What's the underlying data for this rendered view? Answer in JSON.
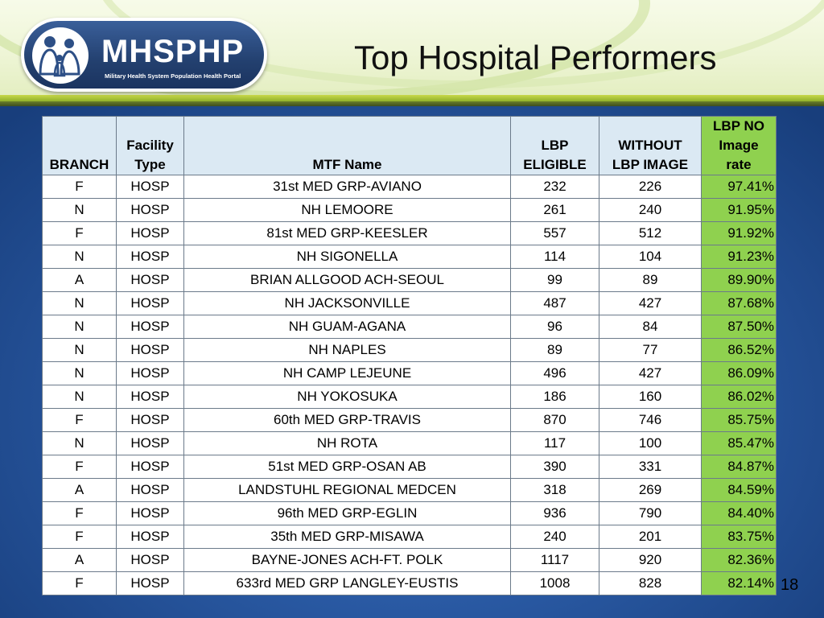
{
  "header": {
    "logo_text": "MHSPHP",
    "logo_subtitle": "Military Health System Population Health Portal",
    "title": "Top Hospital Performers"
  },
  "table": {
    "columns": {
      "branch": "BRANCH",
      "facility_line1": "Facility",
      "facility_line2": "Type",
      "mtf": "MTF Name",
      "eligible_line1": "LBP",
      "eligible_line2": "ELIGIBLE",
      "without_line1": "WITHOUT",
      "without_line2": "LBP IMAGE",
      "rate_line1": "LBP NO",
      "rate_line2": "Image",
      "rate_line3": "rate"
    },
    "rows": [
      {
        "branch": "F",
        "type": "HOSP",
        "mtf": "31st MED GRP-AVIANO",
        "eligible": "232",
        "without": "226",
        "rate": "97.41%"
      },
      {
        "branch": "N",
        "type": "HOSP",
        "mtf": "NH LEMOORE",
        "eligible": "261",
        "without": "240",
        "rate": "91.95%"
      },
      {
        "branch": "F",
        "type": "HOSP",
        "mtf": "81st MED GRP-KEESLER",
        "eligible": "557",
        "without": "512",
        "rate": "91.92%"
      },
      {
        "branch": "N",
        "type": "HOSP",
        "mtf": "NH SIGONELLA",
        "eligible": "114",
        "without": "104",
        "rate": "91.23%"
      },
      {
        "branch": "A",
        "type": "HOSP",
        "mtf": "BRIAN ALLGOOD ACH-SEOUL",
        "eligible": "99",
        "without": "89",
        "rate": "89.90%"
      },
      {
        "branch": "N",
        "type": "HOSP",
        "mtf": "NH JACKSONVILLE",
        "eligible": "487",
        "without": "427",
        "rate": "87.68%"
      },
      {
        "branch": "N",
        "type": "HOSP",
        "mtf": "NH GUAM-AGANA",
        "eligible": "96",
        "without": "84",
        "rate": "87.50%"
      },
      {
        "branch": "N",
        "type": "HOSP",
        "mtf": "NH NAPLES",
        "eligible": "89",
        "without": "77",
        "rate": "86.52%"
      },
      {
        "branch": "N",
        "type": "HOSP",
        "mtf": "NH CAMP LEJEUNE",
        "eligible": "496",
        "without": "427",
        "rate": "86.09%"
      },
      {
        "branch": "N",
        "type": "HOSP",
        "mtf": "NH YOKOSUKA",
        "eligible": "186",
        "without": "160",
        "rate": "86.02%"
      },
      {
        "branch": "F",
        "type": "HOSP",
        "mtf": "60th MED GRP-TRAVIS",
        "eligible": "870",
        "without": "746",
        "rate": "85.75%"
      },
      {
        "branch": "N",
        "type": "HOSP",
        "mtf": "NH ROTA",
        "eligible": "117",
        "without": "100",
        "rate": "85.47%"
      },
      {
        "branch": "F",
        "type": "HOSP",
        "mtf": "51st MED GRP-OSAN AB",
        "eligible": "390",
        "without": "331",
        "rate": "84.87%"
      },
      {
        "branch": "A",
        "type": "HOSP",
        "mtf": "LANDSTUHL REGIONAL MEDCEN",
        "eligible": "318",
        "without": "269",
        "rate": "84.59%"
      },
      {
        "branch": "F",
        "type": "HOSP",
        "mtf": "96th MED GRP-EGLIN",
        "eligible": "936",
        "without": "790",
        "rate": "84.40%"
      },
      {
        "branch": "F",
        "type": "HOSP",
        "mtf": "35th MED GRP-MISAWA",
        "eligible": "240",
        "without": "201",
        "rate": "83.75%"
      },
      {
        "branch": "A",
        "type": "HOSP",
        "mtf": "BAYNE-JONES ACH-FT. POLK",
        "eligible": "1117",
        "without": "920",
        "rate": "82.36%"
      },
      {
        "branch": "F",
        "type": "HOSP",
        "mtf": "633rd MED GRP LANGLEY-EUSTIS",
        "eligible": "1008",
        "without": "828",
        "rate": "82.14%"
      }
    ]
  },
  "page_number": "18",
  "colors": {
    "header_cell": "#dbe9f3",
    "rate_cell": "#8fd14f",
    "background_blue": "#2a5aa4"
  }
}
